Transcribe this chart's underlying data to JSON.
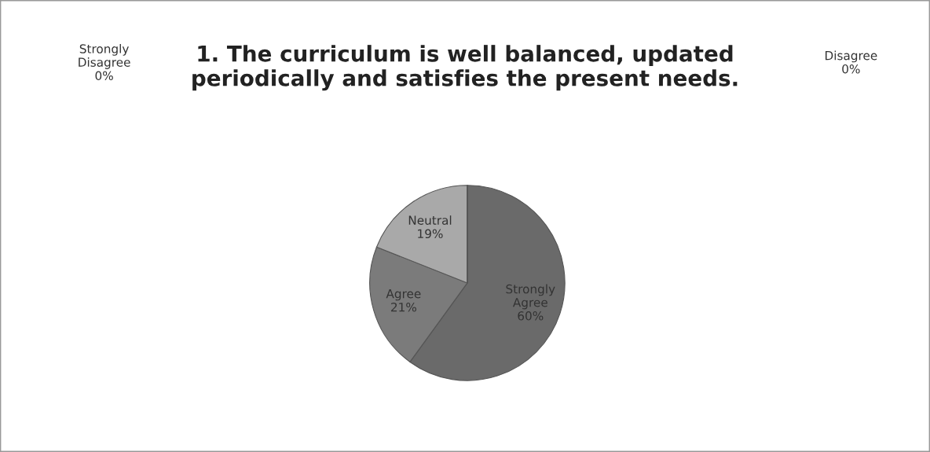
{
  "chart_data": {
    "type": "pie",
    "title": "1. The curriculum is well balanced, updated\nperiodically and satisfies the present needs.",
    "categories": [
      "Strongly Agree",
      "Agree",
      "Neutral",
      "Disagree",
      "Strongly Disagree"
    ],
    "values": [
      60,
      21,
      19,
      0,
      0
    ],
    "value_labels": [
      "60%",
      "21%",
      "19%",
      "0%",
      "0%"
    ],
    "colors": [
      "#6a6a6a",
      "#7b7b7b",
      "#a9a9a9",
      "#8c8c8c",
      "#5a5a5a"
    ]
  }
}
